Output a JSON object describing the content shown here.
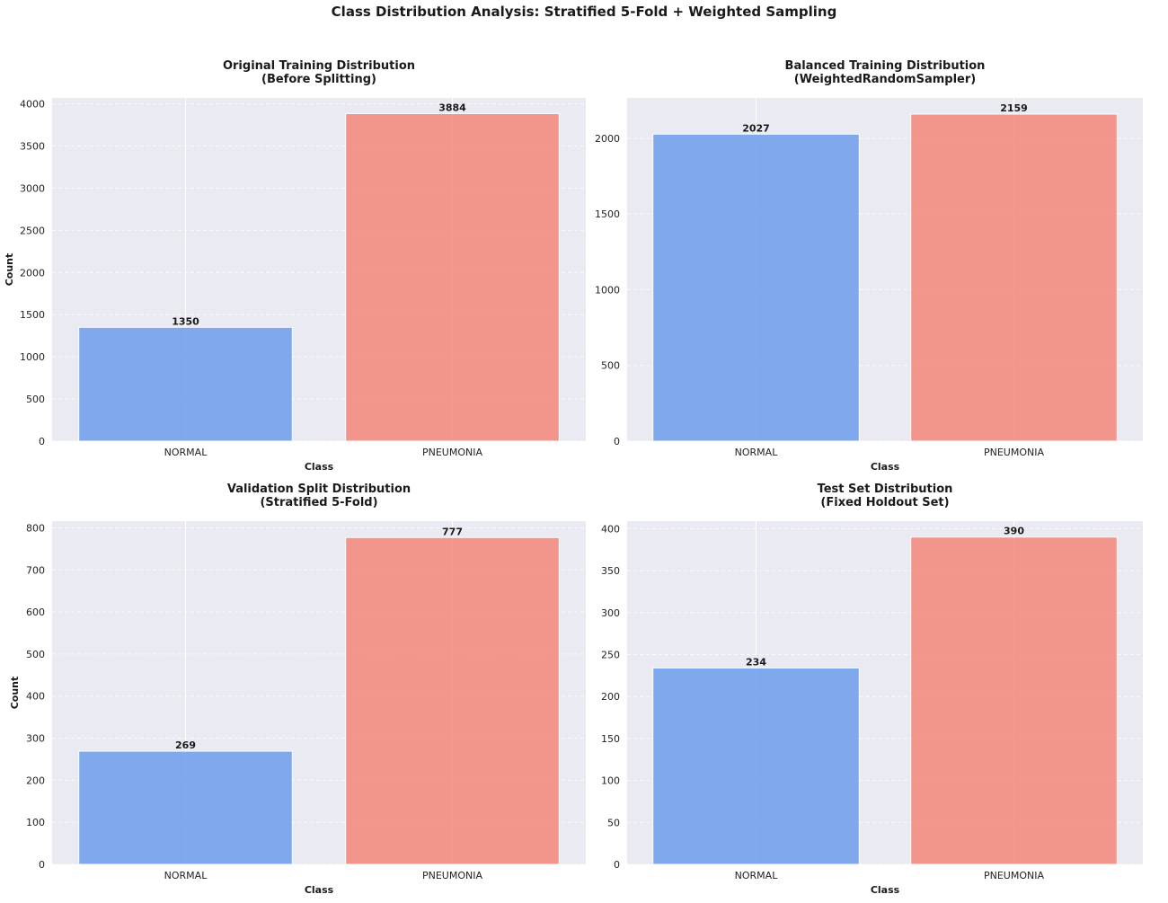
{
  "suptitle": "Class Distribution Analysis: Stratified 5-Fold + Weighted Sampling",
  "colors": {
    "NORMAL": "#6d9eeb",
    "PNEUMONIA": "#f4877c",
    "plot_bg": "#eaeaf2",
    "grid": "#ffffff"
  },
  "chart_data": [
    {
      "type": "bar",
      "title": [
        "Original Training Distribution",
        "(Before Splitting)"
      ],
      "categories": [
        "NORMAL",
        "PNEUMONIA"
      ],
      "values": [
        1350,
        3884
      ],
      "xlabel": "Class",
      "ylabel": "Count",
      "ylim": [
        0,
        4070
      ],
      "yticks": [
        0,
        500,
        1000,
        1500,
        2000,
        2500,
        3000,
        3500,
        4000
      ],
      "grid": true
    },
    {
      "type": "bar",
      "title": [
        "Balanced Training Distribution",
        "(WeightedRandomSampler)"
      ],
      "categories": [
        "NORMAL",
        "PNEUMONIA"
      ],
      "values": [
        2027,
        2159
      ],
      "xlabel": "Class",
      "ylabel": "",
      "ylim": [
        0,
        2266
      ],
      "yticks": [
        0,
        500,
        1000,
        1500,
        2000
      ],
      "grid": true
    },
    {
      "type": "bar",
      "title": [
        "Validation Split Distribution",
        "(Stratified 5-Fold)"
      ],
      "categories": [
        "NORMAL",
        "PNEUMONIA"
      ],
      "values": [
        269,
        777
      ],
      "xlabel": "Class",
      "ylabel": "Count",
      "ylim": [
        0,
        816
      ],
      "yticks": [
        0,
        100,
        200,
        300,
        400,
        500,
        600,
        700,
        800
      ],
      "grid": true
    },
    {
      "type": "bar",
      "title": [
        "Test Set Distribution",
        "(Fixed Holdout Set)"
      ],
      "categories": [
        "NORMAL",
        "PNEUMONIA"
      ],
      "values": [
        234,
        390
      ],
      "xlabel": "Class",
      "ylabel": "",
      "ylim": [
        0,
        409
      ],
      "yticks": [
        0,
        50,
        100,
        150,
        200,
        250,
        300,
        350,
        400
      ],
      "grid": true
    }
  ]
}
